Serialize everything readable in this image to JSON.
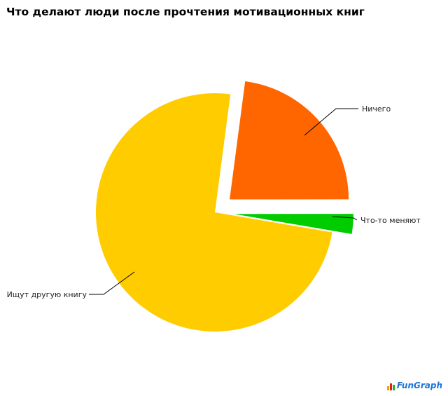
{
  "chart_data": {
    "type": "pie",
    "title": "Что делают люди после прочтения мотивационных книг",
    "start_angle_deg": 7.5,
    "slices": [
      {
        "label": "Ничего",
        "value": 22.9,
        "color": "#ff6600",
        "exploded": true
      },
      {
        "label": "Что-то меняют",
        "value": 2.7,
        "color": "#00cc00",
        "exploded": true
      },
      {
        "label": "Ищут другую книгу",
        "value": 74.4,
        "color": "#ffcc00",
        "exploded": false
      }
    ]
  },
  "watermark": "FunGraph"
}
